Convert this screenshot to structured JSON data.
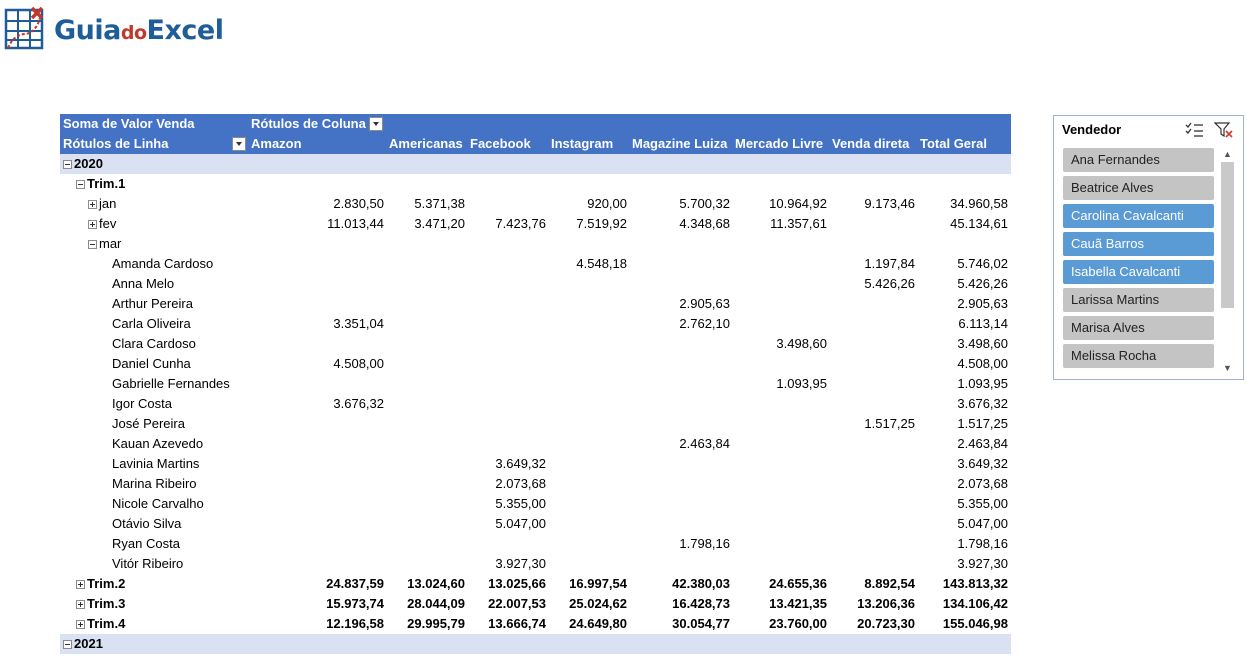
{
  "logo": {
    "part1": "Guia",
    "part2": "do",
    "part3": "Excel"
  },
  "pivot": {
    "value_field": "Soma de Valor Venda",
    "col_labels": "Rótulos de Coluna",
    "row_labels": "Rótulos de Linha",
    "columns": [
      "Amazon",
      "Americanas",
      "Facebook",
      "Instagram",
      "Magazine Luiza",
      "Mercado Livre",
      "Venda direta",
      "Total Geral"
    ],
    "rows": [
      {
        "label": "2020",
        "level": 0,
        "toggle": "minus",
        "style": "year",
        "values": [
          "",
          "",
          "",
          "",
          "",
          "",
          "",
          ""
        ]
      },
      {
        "label": "Trim.1",
        "level": 1,
        "toggle": "minus",
        "style": "group",
        "values": [
          "",
          "",
          "",
          "",
          "",
          "",
          "",
          ""
        ]
      },
      {
        "label": "jan",
        "level": 2,
        "toggle": "plus",
        "style": "normal",
        "values": [
          "2.830,50",
          "5.371,38",
          "",
          "920,00",
          "5.700,32",
          "10.964,92",
          "9.173,46",
          "34.960,58"
        ]
      },
      {
        "label": "fev",
        "level": 2,
        "toggle": "plus",
        "style": "normal",
        "values": [
          "11.013,44",
          "3.471,20",
          "7.423,76",
          "7.519,92",
          "4.348,68",
          "11.357,61",
          "",
          "45.134,61"
        ]
      },
      {
        "label": "mar",
        "level": 2,
        "toggle": "minus",
        "style": "normal",
        "values": [
          "",
          "",
          "",
          "",
          "",
          "",
          "",
          ""
        ]
      },
      {
        "label": "Amanda Cardoso",
        "level": 3,
        "toggle": "",
        "style": "normal",
        "values": [
          "",
          "",
          "",
          "4.548,18",
          "",
          "",
          "1.197,84",
          "5.746,02"
        ]
      },
      {
        "label": "Anna Melo",
        "level": 3,
        "toggle": "",
        "style": "normal",
        "values": [
          "",
          "",
          "",
          "",
          "",
          "",
          "5.426,26",
          "5.426,26"
        ]
      },
      {
        "label": "Arthur Pereira",
        "level": 3,
        "toggle": "",
        "style": "normal",
        "values": [
          "",
          "",
          "",
          "",
          "2.905,63",
          "",
          "",
          "2.905,63"
        ]
      },
      {
        "label": "Carla Oliveira",
        "level": 3,
        "toggle": "",
        "style": "normal",
        "values": [
          "3.351,04",
          "",
          "",
          "",
          "2.762,10",
          "",
          "",
          "6.113,14"
        ]
      },
      {
        "label": "Clara Cardoso",
        "level": 3,
        "toggle": "",
        "style": "normal",
        "values": [
          "",
          "",
          "",
          "",
          "",
          "3.498,60",
          "",
          "3.498,60"
        ]
      },
      {
        "label": "Daniel Cunha",
        "level": 3,
        "toggle": "",
        "style": "normal",
        "values": [
          "4.508,00",
          "",
          "",
          "",
          "",
          "",
          "",
          "4.508,00"
        ]
      },
      {
        "label": "Gabrielle Fernandes",
        "level": 3,
        "toggle": "",
        "style": "normal",
        "values": [
          "",
          "",
          "",
          "",
          "",
          "1.093,95",
          "",
          "1.093,95"
        ]
      },
      {
        "label": "Igor Costa",
        "level": 3,
        "toggle": "",
        "style": "normal",
        "values": [
          "3.676,32",
          "",
          "",
          "",
          "",
          "",
          "",
          "3.676,32"
        ]
      },
      {
        "label": "José Pereira",
        "level": 3,
        "toggle": "",
        "style": "normal",
        "values": [
          "",
          "",
          "",
          "",
          "",
          "",
          "1.517,25",
          "1.517,25"
        ]
      },
      {
        "label": "Kauan Azevedo",
        "level": 3,
        "toggle": "",
        "style": "normal",
        "values": [
          "",
          "",
          "",
          "",
          "2.463,84",
          "",
          "",
          "2.463,84"
        ]
      },
      {
        "label": "Lavinia Martins",
        "level": 3,
        "toggle": "",
        "style": "normal",
        "values": [
          "",
          "",
          "3.649,32",
          "",
          "",
          "",
          "",
          "3.649,32"
        ]
      },
      {
        "label": "Marina Ribeiro",
        "level": 3,
        "toggle": "",
        "style": "normal",
        "values": [
          "",
          "",
          "2.073,68",
          "",
          "",
          "",
          "",
          "2.073,68"
        ]
      },
      {
        "label": "Nicole Carvalho",
        "level": 3,
        "toggle": "",
        "style": "normal",
        "values": [
          "",
          "",
          "5.355,00",
          "",
          "",
          "",
          "",
          "5.355,00"
        ]
      },
      {
        "label": "Otávio Silva",
        "level": 3,
        "toggle": "",
        "style": "normal",
        "values": [
          "",
          "",
          "5.047,00",
          "",
          "",
          "",
          "",
          "5.047,00"
        ]
      },
      {
        "label": "Ryan Costa",
        "level": 3,
        "toggle": "",
        "style": "normal",
        "values": [
          "",
          "",
          "",
          "",
          "1.798,16",
          "",
          "",
          "1.798,16"
        ]
      },
      {
        "label": "Vitór Ribeiro",
        "level": 3,
        "toggle": "",
        "style": "normal",
        "values": [
          "",
          "",
          "3.927,30",
          "",
          "",
          "",
          "",
          "3.927,30"
        ]
      },
      {
        "label": "Trim.2",
        "level": 1,
        "toggle": "plus",
        "style": "total",
        "values": [
          "24.837,59",
          "13.024,60",
          "13.025,66",
          "16.997,54",
          "42.380,03",
          "24.655,36",
          "8.892,54",
          "143.813,32"
        ]
      },
      {
        "label": "Trim.3",
        "level": 1,
        "toggle": "plus",
        "style": "total",
        "values": [
          "15.973,74",
          "28.044,09",
          "22.007,53",
          "25.024,62",
          "16.428,73",
          "13.421,35",
          "13.206,36",
          "134.106,42"
        ]
      },
      {
        "label": "Trim.4",
        "level": 1,
        "toggle": "plus",
        "style": "total",
        "values": [
          "12.196,58",
          "29.995,79",
          "13.666,74",
          "24.649,80",
          "30.054,77",
          "23.760,00",
          "20.723,30",
          "155.046,98"
        ]
      },
      {
        "label": "2021",
        "level": 0,
        "toggle": "minus",
        "style": "year",
        "values": [
          "",
          "",
          "",
          "",
          "",
          "",
          "",
          ""
        ]
      }
    ]
  },
  "slicer": {
    "title": "Vendedor",
    "multiselect_icon": "multi-select-icon",
    "clear_filter_icon": "clear-filter-icon",
    "items": [
      {
        "label": "Ana Fernandes",
        "selected": false
      },
      {
        "label": "Beatrice Alves",
        "selected": false
      },
      {
        "label": "Carolina Cavalcanti",
        "selected": true
      },
      {
        "label": "Cauã Barros",
        "selected": true
      },
      {
        "label": "Isabella Cavalcanti",
        "selected": true
      },
      {
        "label": "Larissa Martins",
        "selected": false
      },
      {
        "label": "Marisa Alves",
        "selected": false
      },
      {
        "label": "Melissa Rocha",
        "selected": false
      }
    ]
  },
  "colors": {
    "header_bg": "#4472c4",
    "year_row_bg": "#d9e1f2",
    "slicer_selected": "#5b9bd5",
    "slicer_unselected": "#c4c4c4"
  }
}
